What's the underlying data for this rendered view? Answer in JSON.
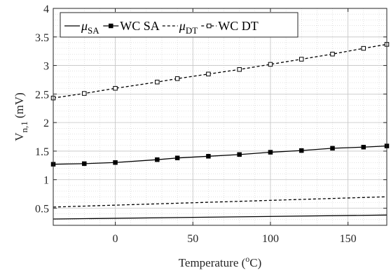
{
  "chart_data": {
    "type": "line",
    "xlabel": {
      "base": "Temperature (",
      "sup": "o",
      "tail": "C)"
    },
    "ylabel": {
      "base": "V",
      "sub": "n,1",
      "tail": " (mV)"
    },
    "xlim": [
      -40,
      175
    ],
    "ylim": [
      0.2,
      4
    ],
    "x_ticks": [
      0,
      50,
      100,
      150
    ],
    "x_tick_labels": [
      "0",
      "50",
      "100",
      "150"
    ],
    "y_ticks": [
      0.5,
      1,
      1.5,
      2,
      2.5,
      3,
      3.5,
      4
    ],
    "y_tick_labels": [
      "0.5",
      "1",
      "1.5",
      "2",
      "2.5",
      "3",
      "3.5",
      "4"
    ],
    "grid": "major and minor",
    "legend_position": "top-left",
    "colors": {
      "series": "#000000",
      "grid": "#d0d0d0",
      "axis": "#262626"
    },
    "series": [
      {
        "name": "μ_SA",
        "legend": {
          "main": "μ",
          "sub": "SA"
        },
        "style": "solid",
        "marker": "none",
        "x": [
          -40,
          175
        ],
        "y": [
          0.31,
          0.38
        ]
      },
      {
        "name": "WC SA",
        "legend": {
          "main": "WC SA",
          "sub": ""
        },
        "style": "solid",
        "marker": "filled-square",
        "x": [
          -40,
          -20,
          0,
          27,
          40,
          60,
          80,
          100,
          120,
          140,
          160,
          175
        ],
        "y": [
          1.27,
          1.28,
          1.3,
          1.35,
          1.38,
          1.41,
          1.44,
          1.48,
          1.51,
          1.55,
          1.57,
          1.59
        ]
      },
      {
        "name": "μ_DT",
        "legend": {
          "main": "μ",
          "sub": "DT"
        },
        "style": "dashed",
        "marker": "none",
        "x": [
          -40,
          175
        ],
        "y": [
          0.52,
          0.7
        ]
      },
      {
        "name": "WC DT",
        "legend": {
          "main": "WC DT",
          "sub": ""
        },
        "style": "dashed",
        "marker": "open-square",
        "x": [
          -40,
          -20,
          0,
          27,
          40,
          60,
          80,
          100,
          120,
          140,
          160,
          175
        ],
        "y": [
          2.43,
          2.51,
          2.6,
          2.71,
          2.77,
          2.85,
          2.93,
          3.02,
          3.11,
          3.2,
          3.3,
          3.37
        ]
      }
    ]
  }
}
